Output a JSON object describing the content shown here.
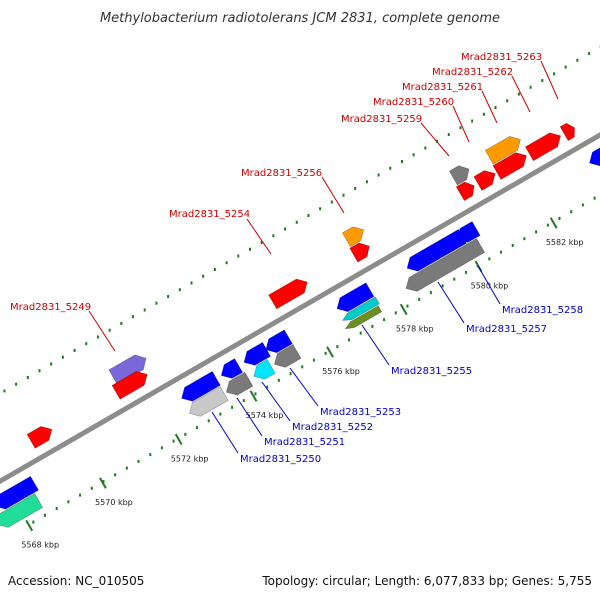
{
  "title": "Methylobacterium radiotolerans JCM 2831, complete genome",
  "footer": {
    "accession": "Accession: NC_010505",
    "summary": "Topology: circular; Length: 6,077,833 bp; Genes: 5,755"
  },
  "colors": {
    "backbone": "#8c8c8c",
    "dots": "#1e7a1e",
    "label_forward": "#cc0000",
    "label_reverse": "#0000cc",
    "leader_forward": "#cc0000",
    "leader_reverse": "#0000cc"
  },
  "ticks": [
    {
      "label": "5568 kbp"
    },
    {
      "label": "5570 kbp"
    },
    {
      "label": "5572 kbp"
    },
    {
      "label": "5574 kbp"
    },
    {
      "label": "5576 kbp"
    },
    {
      "label": "5578 kbp"
    },
    {
      "label": "5580 kbp"
    },
    {
      "label": "5582 kbp"
    }
  ],
  "gene_labels": [
    {
      "name": "Mrad2831_5249",
      "strand": "forward"
    },
    {
      "name": "Mrad2831_5254",
      "strand": "forward"
    },
    {
      "name": "Mrad2831_5256",
      "strand": "forward"
    },
    {
      "name": "Mrad2831_5259",
      "strand": "forward"
    },
    {
      "name": "Mrad2831_5260",
      "strand": "forward"
    },
    {
      "name": "Mrad2831_5261",
      "strand": "forward"
    },
    {
      "name": "Mrad2831_5262",
      "strand": "forward"
    },
    {
      "name": "Mrad2831_5263",
      "strand": "forward"
    },
    {
      "name": "Mrad2831_5250",
      "strand": "reverse"
    },
    {
      "name": "Mrad2831_5251",
      "strand": "reverse"
    },
    {
      "name": "Mrad2831_5252",
      "strand": "reverse"
    },
    {
      "name": "Mrad2831_5253",
      "strand": "reverse"
    },
    {
      "name": "Mrad2831_5255",
      "strand": "reverse"
    },
    {
      "name": "Mrad2831_5257",
      "strand": "reverse"
    },
    {
      "name": "Mrad2831_5258",
      "strand": "reverse"
    }
  ],
  "features": [
    {
      "id": "feature-5249-cog",
      "color": "#7b68d8"
    },
    {
      "id": "feature-5249-cds",
      "color": "#ff0000"
    },
    {
      "id": "feature-5254-cds",
      "color": "#ff0000"
    },
    {
      "id": "feature-5256-cog",
      "color": "#ff9900"
    },
    {
      "id": "feature-5256-cds",
      "color": "#ff0000"
    },
    {
      "id": "feature-5259-cog",
      "color": "#7a7a7a"
    },
    {
      "id": "feature-5259-cds",
      "color": "#ff0000"
    },
    {
      "id": "feature-5260-cds",
      "color": "#ff0000"
    },
    {
      "id": "feature-5261-cog",
      "color": "#ff9900"
    },
    {
      "id": "feature-5261-cds",
      "color": "#ff0000"
    },
    {
      "id": "feature-5262-cds",
      "color": "#ff0000"
    },
    {
      "id": "feature-5263-cds",
      "color": "#ff0000"
    },
    {
      "id": "feature-left-cds",
      "color": "#ff0000"
    },
    {
      "id": "feature-right-edge-cds",
      "color": "#0000ff"
    },
    {
      "id": "feature-5568-cds",
      "color": "#0000ff"
    },
    {
      "id": "feature-5568-cog",
      "color": "#22dd99"
    },
    {
      "id": "feature-5250-cds",
      "color": "#0000ff"
    },
    {
      "id": "feature-5250-cog",
      "color": "#c8c8c8"
    },
    {
      "id": "feature-5251-cds",
      "color": "#0000ff"
    },
    {
      "id": "feature-5251-cog",
      "color": "#7a7a7a"
    },
    {
      "id": "feature-5252-cds",
      "color": "#0000ff"
    },
    {
      "id": "feature-5252-cog",
      "color": "#00e5ff"
    },
    {
      "id": "feature-5253-cds",
      "color": "#0000ff"
    },
    {
      "id": "feature-5253-cog",
      "color": "#7a7a7a"
    },
    {
      "id": "feature-5255-cds",
      "color": "#0000ff"
    },
    {
      "id": "feature-5255-cog-a",
      "color": "#00cccc"
    },
    {
      "id": "feature-5255-cog-b",
      "color": "#6b8e23"
    },
    {
      "id": "feature-5257-cds",
      "color": "#0000ff"
    },
    {
      "id": "feature-5257-cog",
      "color": "#7a7a7a"
    },
    {
      "id": "feature-5258-cds",
      "color": "#0000ff"
    }
  ]
}
